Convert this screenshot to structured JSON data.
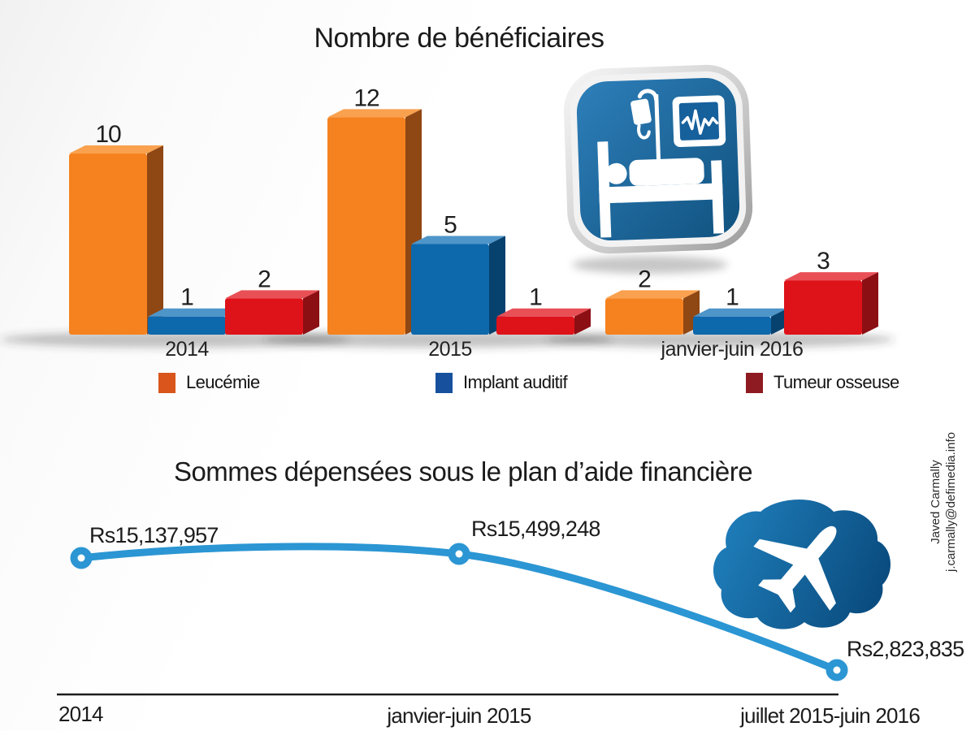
{
  "credit": {
    "name": "Javed Carmally",
    "email": "j.carmally@defimedia.info"
  },
  "chart_data": [
    {
      "type": "bar",
      "style": "3d-grouped",
      "title": "Nombre de bénéficiaires",
      "categories": [
        "2014",
        "2015",
        "janvier-juin 2016"
      ],
      "series": [
        {
          "name": "Leucémie",
          "values": [
            10,
            12,
            2
          ],
          "color": "#F5821F",
          "color_top": "#F9A14E",
          "color_side": "#8F4713",
          "legend_color": "#D9551B"
        },
        {
          "name": "Implant auditif",
          "values": [
            1,
            5,
            1
          ],
          "color": "#0E68AC",
          "color_top": "#4E95C9",
          "color_side": "#07426F",
          "legend_color": "#17519E"
        },
        {
          "name": "Tumeur osseuse",
          "values": [
            2,
            1,
            3
          ],
          "color": "#DE1219",
          "color_top": "#E85056",
          "color_side": "#8C0F14",
          "legend_color": "#8E1B21"
        }
      ],
      "ylim": [
        0,
        12
      ],
      "grid": false,
      "legend_position": "bottom",
      "icon": "hospital-bed-icon"
    },
    {
      "type": "line",
      "title": "Sommes dépensées sous le plan d’aide financière",
      "categories": [
        "2014",
        "janvier-juin 2015",
        "juillet 2015-juin 2016"
      ],
      "values": [
        15137957,
        15499248,
        2823835
      ],
      "point_labels": [
        "Rs15,137,957",
        "Rs15,499,248",
        "Rs2,823,835"
      ],
      "line_color": "#2B96D3",
      "grid": false,
      "legend_position": "none",
      "icon": "airplane-cloud-icon"
    }
  ]
}
